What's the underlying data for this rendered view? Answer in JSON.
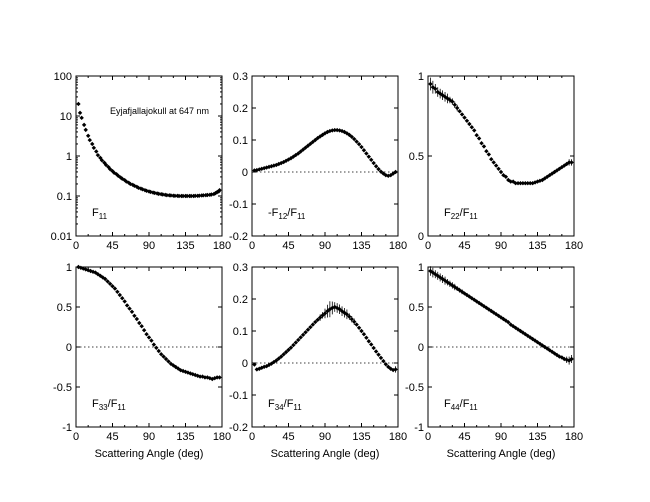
{
  "chart_data": [
    {
      "type": "scatter",
      "id": "p1",
      "label_main": "F",
      "label_sub": "11",
      "label_suffix": "",
      "label_prefix": "",
      "yscale": "log",
      "ylim": [
        0.01,
        100
      ],
      "yticks": [
        "100",
        "10",
        "1",
        "0.1",
        "0.01"
      ],
      "ytick_values": [
        100,
        10,
        1,
        0.1,
        0.01
      ],
      "xlim": [
        0,
        180
      ],
      "xticks": [
        "0",
        "45",
        "90",
        "135",
        "180"
      ],
      "xlabel": "",
      "zero_line": false,
      "annotation": "Eyjafjallajokull at 647 nm",
      "x": [
        3,
        5,
        7,
        10,
        12,
        15,
        17,
        20,
        22,
        25,
        27,
        30,
        32,
        35,
        37,
        40,
        42,
        45,
        47,
        50,
        52,
        55,
        57,
        60,
        62,
        65,
        67,
        70,
        72,
        75,
        77,
        80,
        82,
        85,
        87,
        90,
        92,
        95,
        97,
        100,
        102,
        105,
        107,
        110,
        112,
        115,
        117,
        120,
        122,
        125,
        127,
        130,
        132,
        135,
        137,
        140,
        142,
        145,
        147,
        150,
        152,
        155,
        157,
        160,
        162,
        165,
        167,
        170,
        172,
        174,
        176,
        177
      ],
      "y": [
        20,
        12,
        9,
        6,
        4.5,
        3.2,
        2.5,
        2.0,
        1.6,
        1.3,
        1.05,
        0.9,
        0.78,
        0.68,
        0.6,
        0.53,
        0.47,
        0.42,
        0.38,
        0.35,
        0.32,
        0.29,
        0.27,
        0.25,
        0.23,
        0.215,
        0.2,
        0.19,
        0.18,
        0.17,
        0.16,
        0.153,
        0.147,
        0.14,
        0.135,
        0.13,
        0.126,
        0.122,
        0.119,
        0.116,
        0.113,
        0.111,
        0.109,
        0.107,
        0.105,
        0.104,
        0.103,
        0.102,
        0.101,
        0.101,
        0.1,
        0.1,
        0.1,
        0.1,
        0.1,
        0.1,
        0.1,
        0.1,
        0.101,
        0.101,
        0.102,
        0.103,
        0.104,
        0.105,
        0.106,
        0.107,
        0.109,
        0.112,
        0.118,
        0.125,
        0.13,
        0.14
      ],
      "err": []
    },
    {
      "type": "scatter",
      "id": "p2",
      "label_prefix": "-F",
      "label_main": "",
      "label_sub": "12",
      "label_suffix": "/F",
      "label_sub2": "11",
      "yscale": "linear",
      "ylim": [
        -0.2,
        0.3
      ],
      "yticks": [
        "0.3",
        "0.2",
        "0.1",
        "0",
        "-0.1",
        "-0.2"
      ],
      "ytick_values": [
        0.3,
        0.2,
        0.1,
        0,
        -0.1,
        -0.2
      ],
      "xlim": [
        0,
        180
      ],
      "xticks": [
        "0",
        "45",
        "90",
        "135",
        "180"
      ],
      "xlabel": "",
      "zero_line": true,
      "x": [
        3,
        6,
        9,
        12,
        15,
        18,
        21,
        24,
        27,
        30,
        33,
        36,
        39,
        42,
        45,
        48,
        51,
        54,
        57,
        60,
        63,
        66,
        69,
        72,
        75,
        78,
        81,
        84,
        87,
        90,
        93,
        96,
        99,
        102,
        105,
        108,
        111,
        114,
        117,
        120,
        123,
        126,
        129,
        132,
        135,
        138,
        141,
        144,
        147,
        150,
        153,
        156,
        159,
        162,
        165,
        168,
        171,
        174,
        177
      ],
      "y": [
        0.005,
        0.006,
        0.008,
        0.01,
        0.012,
        0.014,
        0.016,
        0.018,
        0.02,
        0.022,
        0.025,
        0.028,
        0.031,
        0.035,
        0.039,
        0.043,
        0.048,
        0.053,
        0.058,
        0.064,
        0.07,
        0.076,
        0.082,
        0.088,
        0.094,
        0.1,
        0.106,
        0.111,
        0.116,
        0.121,
        0.125,
        0.128,
        0.13,
        0.131,
        0.131,
        0.13,
        0.128,
        0.125,
        0.121,
        0.116,
        0.11,
        0.103,
        0.095,
        0.087,
        0.078,
        0.068,
        0.058,
        0.048,
        0.038,
        0.028,
        0.018,
        0.009,
        0.001,
        -0.005,
        -0.01,
        -0.012,
        -0.01,
        -0.005,
        0.0
      ],
      "err": [
        0,
        0,
        0,
        0,
        0,
        0,
        0,
        0,
        0,
        0,
        0,
        0,
        0,
        0,
        0,
        0,
        0,
        0,
        0,
        0,
        0,
        0,
        0,
        0,
        0,
        0,
        0,
        0,
        0,
        0.004,
        0.004,
        0.004,
        0.004,
        0.004,
        0.004,
        0.004,
        0.004,
        0,
        0,
        0,
        0,
        0,
        0,
        0,
        0,
        0,
        0,
        0,
        0,
        0,
        0,
        0,
        0,
        0,
        0,
        0,
        0,
        0,
        0
      ]
    },
    {
      "type": "scatter",
      "id": "p3",
      "label_prefix": "F",
      "label_main": "",
      "label_sub": "22",
      "label_suffix": "/F",
      "label_sub2": "11",
      "yscale": "linear",
      "ylim": [
        0,
        1
      ],
      "yticks": [
        "1",
        "0.5",
        "0"
      ],
      "ytick_values": [
        1,
        0.5,
        0
      ],
      "xlim": [
        0,
        180
      ],
      "xticks": [
        "0",
        "45",
        "90",
        "135",
        "180"
      ],
      "xlabel": "",
      "zero_line": false,
      "x": [
        3,
        6,
        9,
        12,
        15,
        18,
        21,
        24,
        27,
        30,
        33,
        36,
        39,
        42,
        45,
        48,
        51,
        54,
        57,
        60,
        63,
        66,
        69,
        72,
        75,
        78,
        81,
        84,
        87,
        90,
        93,
        96,
        99,
        102,
        105,
        108,
        111,
        114,
        117,
        120,
        123,
        126,
        129,
        132,
        135,
        138,
        141,
        144,
        147,
        150,
        153,
        156,
        159,
        162,
        165,
        168,
        171,
        174,
        177
      ],
      "y": [
        0.95,
        0.93,
        0.92,
        0.9,
        0.89,
        0.88,
        0.87,
        0.86,
        0.85,
        0.84,
        0.82,
        0.8,
        0.78,
        0.76,
        0.74,
        0.72,
        0.7,
        0.68,
        0.66,
        0.63,
        0.61,
        0.58,
        0.56,
        0.53,
        0.51,
        0.48,
        0.46,
        0.44,
        0.42,
        0.4,
        0.38,
        0.37,
        0.35,
        0.34,
        0.34,
        0.33,
        0.33,
        0.33,
        0.33,
        0.33,
        0.33,
        0.33,
        0.33,
        0.335,
        0.34,
        0.345,
        0.35,
        0.36,
        0.37,
        0.38,
        0.39,
        0.4,
        0.41,
        0.42,
        0.43,
        0.44,
        0.45,
        0.46,
        0.46
      ],
      "err": [
        0.04,
        0.04,
        0.03,
        0.03,
        0.03,
        0.03,
        0.03,
        0.03,
        0.02,
        0.02,
        0.02,
        0.02,
        0,
        0,
        0,
        0,
        0,
        0,
        0,
        0,
        0,
        0,
        0,
        0,
        0,
        0,
        0,
        0,
        0,
        0,
        0,
        0,
        0,
        0,
        0,
        0,
        0,
        0,
        0,
        0,
        0,
        0,
        0,
        0,
        0,
        0,
        0,
        0,
        0,
        0,
        0,
        0,
        0,
        0,
        0,
        0,
        0,
        0.02,
        0.02
      ]
    },
    {
      "type": "scatter",
      "id": "p4",
      "label_prefix": "F",
      "label_main": "",
      "label_sub": "33",
      "label_suffix": "/F",
      "label_sub2": "11",
      "yscale": "linear",
      "ylim": [
        -1,
        1
      ],
      "yticks": [
        "1",
        "0.5",
        "0",
        "-0.5",
        "-1"
      ],
      "ytick_values": [
        1,
        0.5,
        0,
        -0.5,
        -1
      ],
      "xlim": [
        0,
        180
      ],
      "xticks": [
        "0",
        "45",
        "90",
        "135",
        "180"
      ],
      "xlabel": "Scattering Angle (deg)",
      "zero_line": true,
      "x": [
        3,
        6,
        9,
        12,
        15,
        18,
        21,
        24,
        27,
        30,
        33,
        36,
        39,
        42,
        45,
        48,
        51,
        54,
        57,
        60,
        63,
        66,
        69,
        72,
        75,
        78,
        81,
        84,
        87,
        90,
        93,
        96,
        99,
        102,
        105,
        108,
        111,
        114,
        117,
        120,
        123,
        126,
        129,
        132,
        135,
        138,
        141,
        144,
        147,
        150,
        153,
        156,
        159,
        162,
        165,
        168,
        171,
        174,
        177
      ],
      "y": [
        1.0,
        0.99,
        0.98,
        0.97,
        0.96,
        0.95,
        0.94,
        0.93,
        0.91,
        0.89,
        0.87,
        0.85,
        0.82,
        0.79,
        0.76,
        0.73,
        0.69,
        0.65,
        0.61,
        0.57,
        0.52,
        0.48,
        0.44,
        0.39,
        0.35,
        0.3,
        0.26,
        0.21,
        0.16,
        0.12,
        0.08,
        0.03,
        -0.01,
        -0.05,
        -0.09,
        -0.12,
        -0.15,
        -0.18,
        -0.21,
        -0.23,
        -0.25,
        -0.27,
        -0.29,
        -0.3,
        -0.31,
        -0.32,
        -0.33,
        -0.34,
        -0.35,
        -0.36,
        -0.37,
        -0.37,
        -0.38,
        -0.38,
        -0.39,
        -0.4,
        -0.39,
        -0.38,
        -0.38
      ],
      "err": [
        0.02,
        0.02,
        0.02,
        0,
        0,
        0,
        0,
        0,
        0,
        0,
        0,
        0,
        0,
        0,
        0,
        0,
        0,
        0,
        0,
        0,
        0,
        0,
        0,
        0,
        0,
        0,
        0,
        0,
        0,
        0,
        0,
        0,
        0,
        0,
        0,
        0,
        0,
        0,
        0,
        0,
        0,
        0,
        0,
        0,
        0,
        0,
        0,
        0,
        0,
        0,
        0,
        0,
        0,
        0,
        0,
        0,
        0,
        0.02,
        0.02
      ]
    },
    {
      "type": "scatter",
      "id": "p5",
      "label_prefix": "F",
      "label_main": "",
      "label_sub": "34",
      "label_suffix": "/F",
      "label_sub2": "11",
      "yscale": "linear",
      "ylim": [
        -0.2,
        0.3
      ],
      "yticks": [
        "0.3",
        "0.2",
        "0.1",
        "0",
        "-0.1",
        "-0.2"
      ],
      "ytick_values": [
        0.3,
        0.2,
        0.1,
        0,
        -0.1,
        -0.2
      ],
      "xlim": [
        0,
        180
      ],
      "xticks": [
        "0",
        "45",
        "90",
        "135",
        "180"
      ],
      "xlabel": "Scattering Angle (deg)",
      "zero_line": true,
      "x": [
        3,
        6,
        9,
        12,
        15,
        18,
        21,
        24,
        27,
        30,
        33,
        36,
        39,
        42,
        45,
        48,
        51,
        54,
        57,
        60,
        63,
        66,
        69,
        72,
        75,
        78,
        81,
        84,
        87,
        90,
        93,
        96,
        99,
        102,
        105,
        108,
        111,
        114,
        117,
        120,
        123,
        126,
        129,
        132,
        135,
        138,
        141,
        144,
        147,
        150,
        153,
        156,
        159,
        162,
        165,
        168,
        171,
        174,
        177
      ],
      "y": [
        -0.005,
        -0.02,
        -0.018,
        -0.015,
        -0.012,
        -0.01,
        -0.006,
        -0.002,
        0.003,
        0.008,
        0.014,
        0.02,
        0.027,
        0.034,
        0.041,
        0.048,
        0.056,
        0.064,
        0.072,
        0.08,
        0.088,
        0.096,
        0.104,
        0.112,
        0.12,
        0.128,
        0.135,
        0.142,
        0.149,
        0.155,
        0.162,
        0.168,
        0.172,
        0.175,
        0.172,
        0.168,
        0.162,
        0.157,
        0.152,
        0.145,
        0.137,
        0.129,
        0.12,
        0.11,
        0.1,
        0.09,
        0.079,
        0.068,
        0.058,
        0.047,
        0.036,
        0.026,
        0.016,
        0.006,
        -0.004,
        -0.012,
        -0.018,
        -0.022,
        -0.02
      ],
      "err": [
        0,
        0,
        0,
        0,
        0,
        0,
        0,
        0,
        0,
        0,
        0,
        0,
        0,
        0,
        0,
        0,
        0,
        0,
        0,
        0,
        0,
        0,
        0,
        0,
        0,
        0,
        0,
        0.01,
        0.01,
        0.015,
        0.02,
        0.025,
        0.02,
        0.015,
        0.015,
        0.015,
        0.015,
        0.015,
        0.015,
        0.01,
        0.01,
        0.01,
        0,
        0,
        0,
        0,
        0,
        0,
        0,
        0,
        0,
        0,
        0,
        0,
        0,
        0,
        0,
        0,
        0.01
      ]
    },
    {
      "type": "scatter",
      "id": "p6",
      "label_prefix": "F",
      "label_main": "",
      "label_sub": "44",
      "label_suffix": "/F",
      "label_sub2": "11",
      "yscale": "linear",
      "ylim": [
        -1,
        1
      ],
      "yticks": [
        "1",
        "0.5",
        "0",
        "-0.5",
        "-1"
      ],
      "ytick_values": [
        1,
        0.5,
        0,
        -0.5,
        -1
      ],
      "xlim": [
        0,
        180
      ],
      "xticks": [
        "0",
        "45",
        "90",
        "135",
        "180"
      ],
      "xlabel": "Scattering Angle (deg)",
      "zero_line": true,
      "x": [
        3,
        6,
        9,
        12,
        15,
        18,
        21,
        24,
        27,
        30,
        33,
        36,
        39,
        42,
        45,
        48,
        51,
        54,
        57,
        60,
        63,
        66,
        69,
        72,
        75,
        78,
        81,
        84,
        87,
        90,
        93,
        96,
        99,
        102,
        105,
        108,
        111,
        114,
        117,
        120,
        123,
        126,
        129,
        132,
        135,
        138,
        141,
        144,
        147,
        150,
        153,
        156,
        159,
        162,
        165,
        168,
        171,
        174,
        177
      ],
      "y": [
        0.95,
        0.93,
        0.91,
        0.89,
        0.87,
        0.85,
        0.83,
        0.81,
        0.79,
        0.77,
        0.75,
        0.73,
        0.71,
        0.69,
        0.67,
        0.65,
        0.63,
        0.61,
        0.59,
        0.57,
        0.55,
        0.53,
        0.51,
        0.49,
        0.47,
        0.45,
        0.43,
        0.41,
        0.39,
        0.37,
        0.35,
        0.33,
        0.31,
        0.28,
        0.26,
        0.24,
        0.22,
        0.2,
        0.18,
        0.16,
        0.14,
        0.12,
        0.1,
        0.08,
        0.06,
        0.04,
        0.02,
        0.0,
        -0.02,
        -0.04,
        -0.06,
        -0.08,
        -0.1,
        -0.12,
        -0.13,
        -0.15,
        -0.16,
        -0.17,
        -0.15
      ],
      "err": [
        0.06,
        0.06,
        0.05,
        0.05,
        0.05,
        0.05,
        0.05,
        0.04,
        0.04,
        0.04,
        0.04,
        0.03,
        0.03,
        0.03,
        0,
        0,
        0,
        0,
        0,
        0,
        0,
        0,
        0,
        0,
        0,
        0,
        0,
        0,
        0,
        0,
        0,
        0,
        0,
        0,
        0,
        0,
        0,
        0,
        0,
        0,
        0,
        0,
        0,
        0,
        0,
        0,
        0,
        0,
        0,
        0,
        0,
        0,
        0,
        0,
        0,
        0,
        0.04,
        0.05,
        0.05
      ]
    }
  ]
}
